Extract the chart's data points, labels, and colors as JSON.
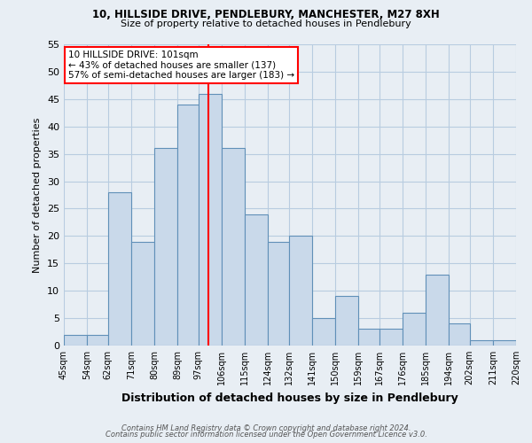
{
  "title1": "10, HILLSIDE DRIVE, PENDLEBURY, MANCHESTER, M27 8XH",
  "title2": "Size of property relative to detached houses in Pendlebury",
  "xlabel": "Distribution of detached houses by size in Pendlebury",
  "ylabel": "Number of detached properties",
  "bin_labels": [
    "45sqm",
    "54sqm",
    "62sqm",
    "71sqm",
    "80sqm",
    "89sqm",
    "97sqm",
    "106sqm",
    "115sqm",
    "124sqm",
    "132sqm",
    "141sqm",
    "150sqm",
    "159sqm",
    "167sqm",
    "176sqm",
    "185sqm",
    "194sqm",
    "202sqm",
    "211sqm",
    "220sqm"
  ],
  "bar_heights": [
    2,
    2,
    28,
    19,
    36,
    44,
    46,
    36,
    24,
    19,
    20,
    5,
    9,
    3,
    3,
    6,
    13,
    4,
    1,
    1
  ],
  "bin_edges": [
    45,
    54,
    62,
    71,
    80,
    89,
    97,
    106,
    115,
    124,
    132,
    141,
    150,
    159,
    167,
    176,
    185,
    194,
    202,
    211,
    220
  ],
  "bar_color": "#c9d9ea",
  "bar_edge_color": "#6090b8",
  "red_line_x": 101,
  "ylim": [
    0,
    55
  ],
  "yticks": [
    0,
    5,
    10,
    15,
    20,
    25,
    30,
    35,
    40,
    45,
    50,
    55
  ],
  "annotation_line1": "10 HILLSIDE DRIVE: 101sqm",
  "annotation_line2": "← 43% of detached houses are smaller (137)",
  "annotation_line3": "57% of semi-detached houses are larger (183) →",
  "footer1": "Contains HM Land Registry data © Crown copyright and database right 2024.",
  "footer2": "Contains public sector information licensed under the Open Government Licence v3.0.",
  "background_color": "#e8eef4",
  "grid_color": "#b8cce0"
}
